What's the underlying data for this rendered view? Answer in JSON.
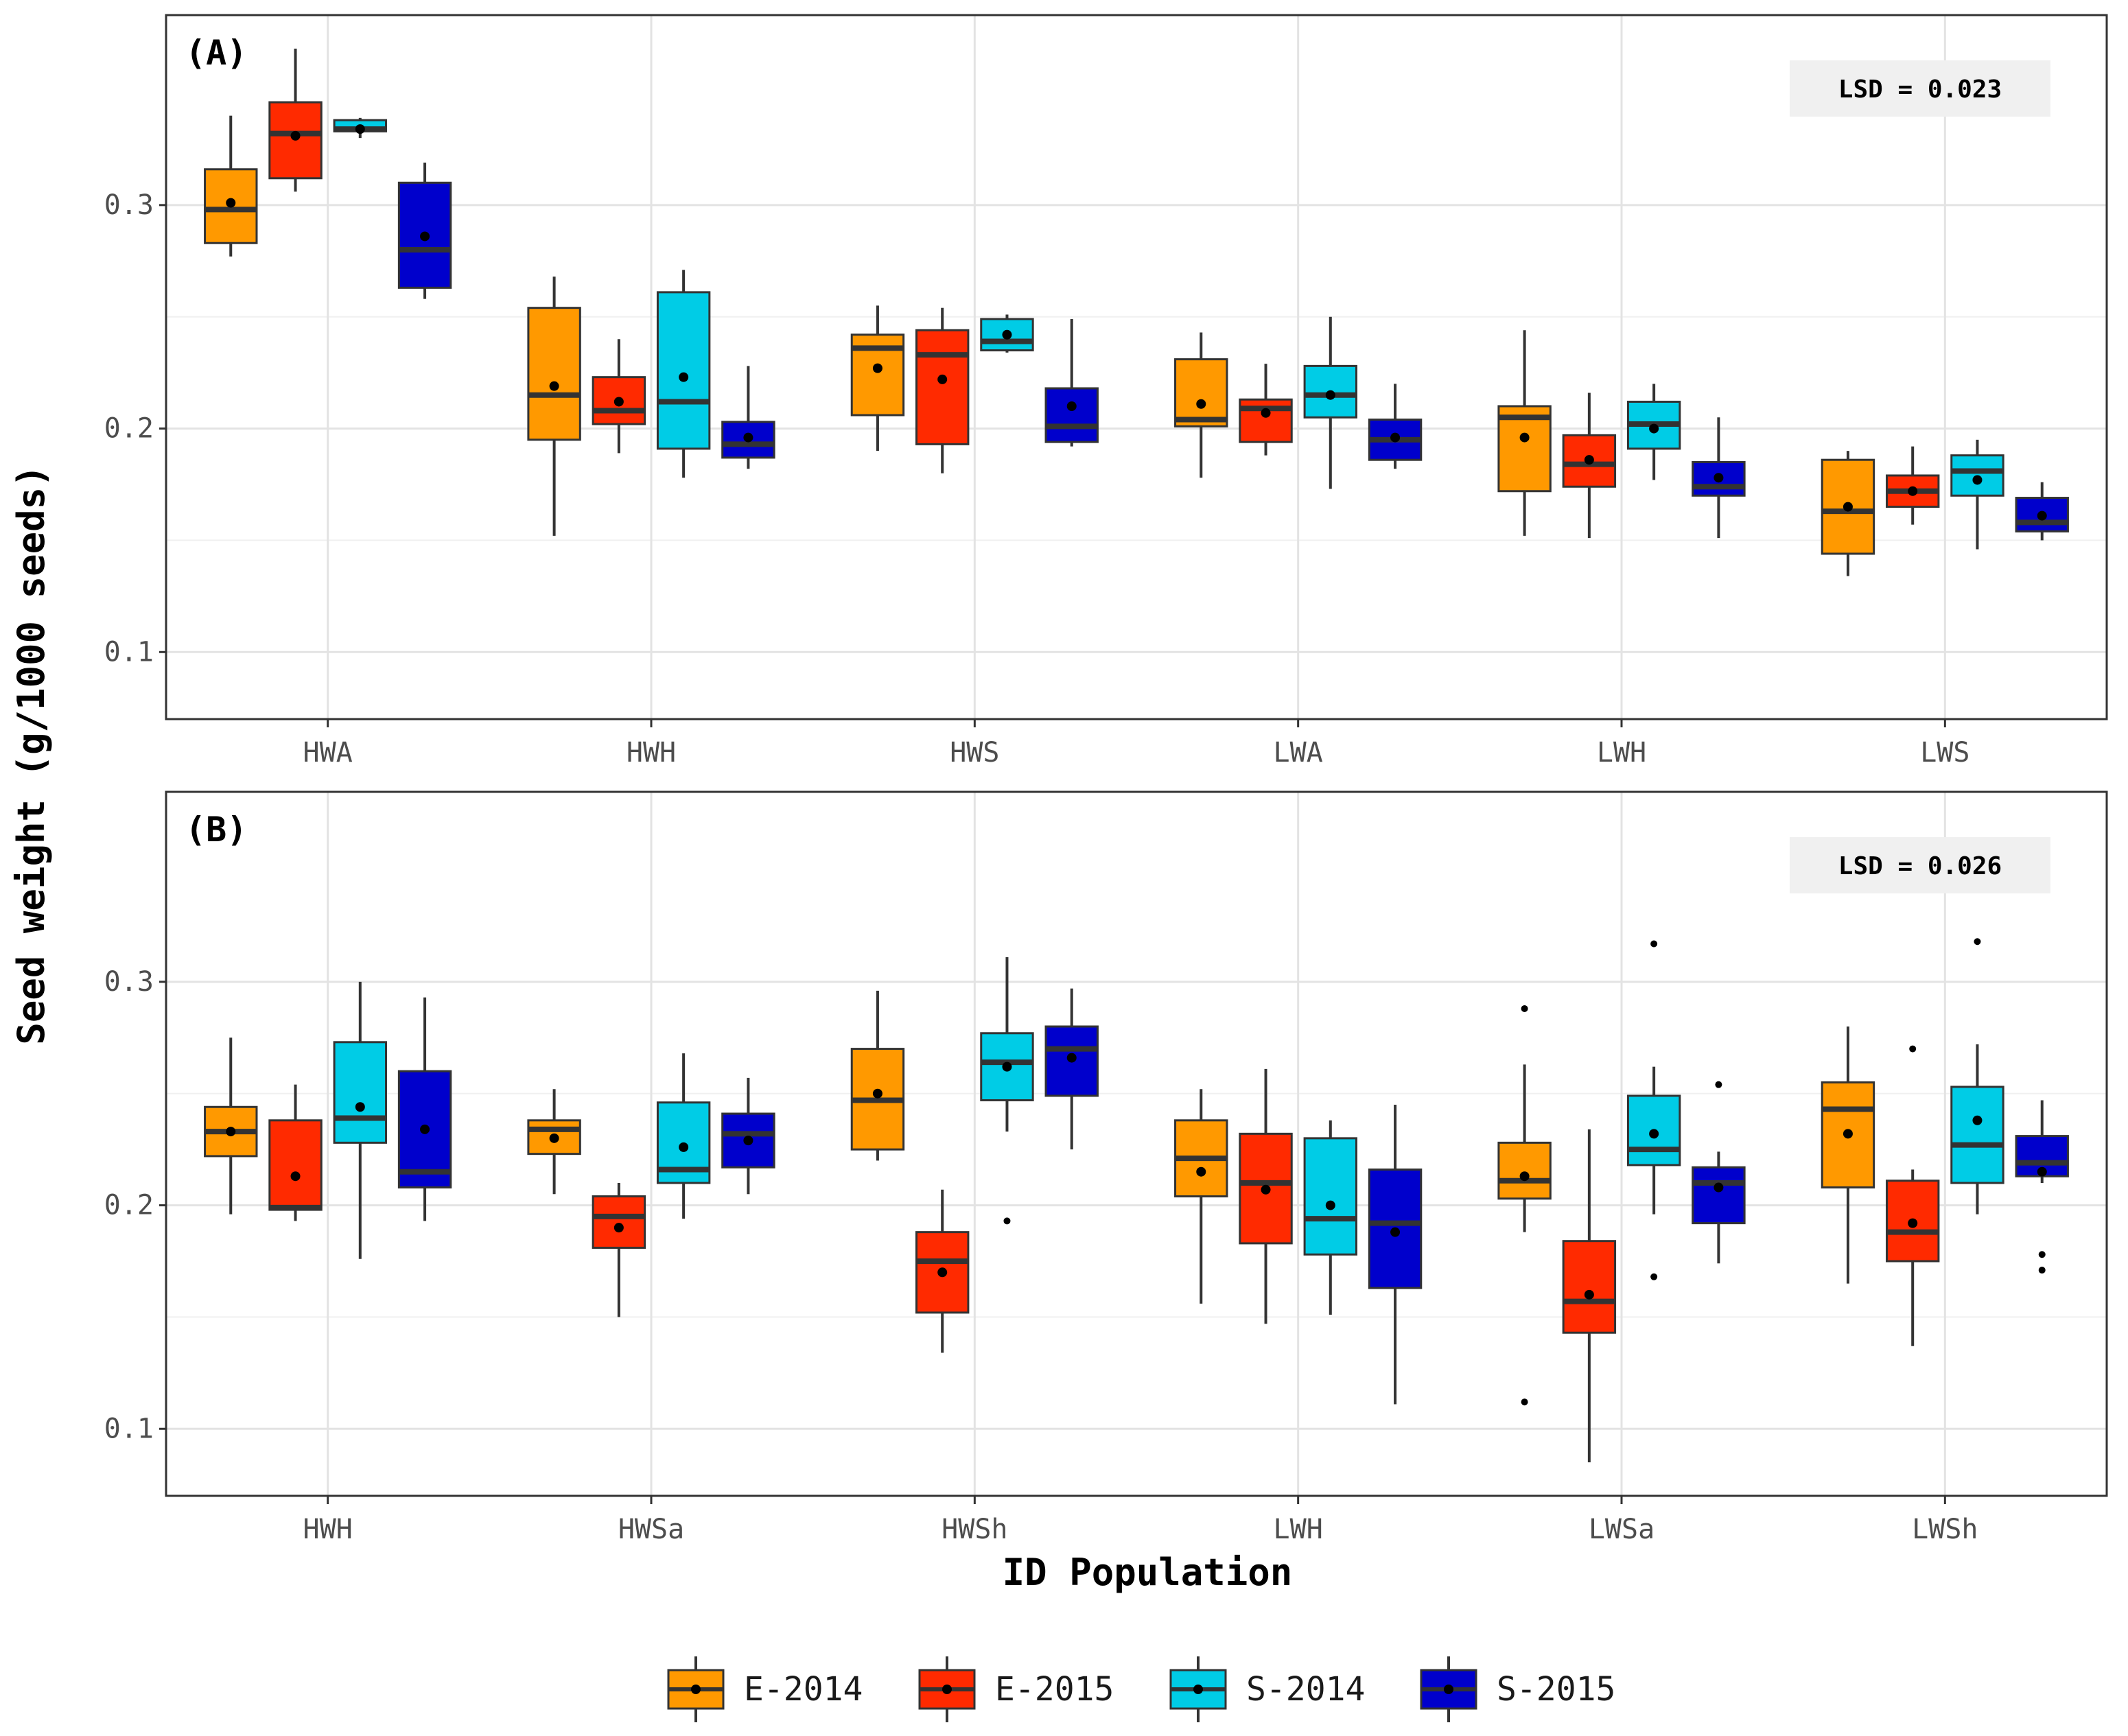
{
  "figure": {
    "ylabel": "Seed weight (g/1000 seeds)",
    "xlabel": "ID Population",
    "legend_position": "bottom"
  },
  "series": [
    {
      "name": "E-2014",
      "color": "#FF9900"
    },
    {
      "name": "E-2015",
      "color": "#FF2A00"
    },
    {
      "name": "S-2014",
      "color": "#00CCE6"
    },
    {
      "name": "S-2015",
      "color": "#0000CC"
    }
  ],
  "chart_data": [
    {
      "type": "boxplot",
      "panel": "(A)",
      "lsd_label": "LSD = 0.023",
      "ylim": [
        0.07,
        0.385
      ],
      "yticks": [
        0.1,
        0.2,
        0.3
      ],
      "ytick_labels": [
        "0.1",
        "0.2",
        "0.3"
      ],
      "grid": true,
      "categories": [
        "HWA",
        "HWH",
        "HWS",
        "LWA",
        "LWH",
        "LWS"
      ],
      "series": [
        {
          "name": "E-2014",
          "boxes": [
            {
              "min": 0.277,
              "q1": 0.283,
              "median": 0.298,
              "q3": 0.316,
              "max": 0.34,
              "mean": 0.301,
              "outliers": []
            },
            {
              "min": 0.152,
              "q1": 0.195,
              "median": 0.215,
              "q3": 0.254,
              "max": 0.268,
              "mean": 0.219,
              "outliers": []
            },
            {
              "min": 0.19,
              "q1": 0.206,
              "median": 0.236,
              "q3": 0.242,
              "max": 0.255,
              "mean": 0.227,
              "outliers": []
            },
            {
              "min": 0.178,
              "q1": 0.201,
              "median": 0.204,
              "q3": 0.231,
              "max": 0.243,
              "mean": 0.211,
              "outliers": []
            },
            {
              "min": 0.152,
              "q1": 0.172,
              "median": 0.205,
              "q3": 0.21,
              "max": 0.244,
              "mean": 0.196,
              "outliers": []
            },
            {
              "min": 0.134,
              "q1": 0.144,
              "median": 0.163,
              "q3": 0.186,
              "max": 0.19,
              "mean": 0.165,
              "outliers": []
            }
          ]
        },
        {
          "name": "E-2015",
          "boxes": [
            {
              "min": 0.306,
              "q1": 0.312,
              "median": 0.332,
              "q3": 0.346,
              "max": 0.37,
              "mean": 0.331,
              "outliers": []
            },
            {
              "min": 0.189,
              "q1": 0.202,
              "median": 0.208,
              "q3": 0.223,
              "max": 0.24,
              "mean": 0.212,
              "outliers": []
            },
            {
              "min": 0.18,
              "q1": 0.193,
              "median": 0.233,
              "q3": 0.244,
              "max": 0.254,
              "mean": 0.222,
              "outliers": []
            },
            {
              "min": 0.188,
              "q1": 0.194,
              "median": 0.209,
              "q3": 0.213,
              "max": 0.229,
              "mean": 0.207,
              "outliers": []
            },
            {
              "min": 0.151,
              "q1": 0.174,
              "median": 0.184,
              "q3": 0.197,
              "max": 0.216,
              "mean": 0.186,
              "outliers": []
            },
            {
              "min": 0.157,
              "q1": 0.165,
              "median": 0.172,
              "q3": 0.179,
              "max": 0.192,
              "mean": 0.172,
              "outliers": []
            }
          ]
        },
        {
          "name": "S-2014",
          "boxes": [
            {
              "min": 0.33,
              "q1": 0.333,
              "median": 0.334,
              "q3": 0.338,
              "max": 0.339,
              "mean": 0.334,
              "outliers": []
            },
            {
              "min": 0.178,
              "q1": 0.191,
              "median": 0.212,
              "q3": 0.261,
              "max": 0.271,
              "mean": 0.223,
              "outliers": []
            },
            {
              "min": 0.234,
              "q1": 0.235,
              "median": 0.239,
              "q3": 0.249,
              "max": 0.251,
              "mean": 0.242,
              "outliers": []
            },
            {
              "min": 0.173,
              "q1": 0.205,
              "median": 0.215,
              "q3": 0.228,
              "max": 0.25,
              "mean": 0.215,
              "outliers": []
            },
            {
              "min": 0.177,
              "q1": 0.191,
              "median": 0.202,
              "q3": 0.212,
              "max": 0.22,
              "mean": 0.2,
              "outliers": []
            },
            {
              "min": 0.146,
              "q1": 0.17,
              "median": 0.181,
              "q3": 0.188,
              "max": 0.195,
              "mean": 0.177,
              "outliers": []
            }
          ]
        },
        {
          "name": "S-2015",
          "boxes": [
            {
              "min": 0.258,
              "q1": 0.263,
              "median": 0.28,
              "q3": 0.31,
              "max": 0.319,
              "mean": 0.286,
              "outliers": []
            },
            {
              "min": 0.182,
              "q1": 0.187,
              "median": 0.193,
              "q3": 0.203,
              "max": 0.228,
              "mean": 0.196,
              "outliers": []
            },
            {
              "min": 0.192,
              "q1": 0.194,
              "median": 0.201,
              "q3": 0.218,
              "max": 0.249,
              "mean": 0.21,
              "outliers": []
            },
            {
              "min": 0.182,
              "q1": 0.186,
              "median": 0.195,
              "q3": 0.204,
              "max": 0.22,
              "mean": 0.196,
              "outliers": []
            },
            {
              "min": 0.151,
              "q1": 0.17,
              "median": 0.174,
              "q3": 0.185,
              "max": 0.205,
              "mean": 0.178,
              "outliers": []
            },
            {
              "min": 0.15,
              "q1": 0.154,
              "median": 0.158,
              "q3": 0.169,
              "max": 0.176,
              "mean": 0.161,
              "outliers": []
            }
          ]
        }
      ]
    },
    {
      "type": "boxplot",
      "panel": "(B)",
      "lsd_label": "LSD = 0.026",
      "ylim": [
        0.07,
        0.385
      ],
      "yticks": [
        0.1,
        0.2,
        0.3
      ],
      "ytick_labels": [
        "0.1",
        "0.2",
        "0.3"
      ],
      "grid": true,
      "categories": [
        "HWH",
        "HWSa",
        "HWSh",
        "LWH",
        "LWSa",
        "LWSh"
      ],
      "series": [
        {
          "name": "E-2014",
          "boxes": [
            {
              "min": 0.196,
              "q1": 0.222,
              "median": 0.233,
              "q3": 0.244,
              "max": 0.275,
              "mean": 0.233,
              "outliers": []
            },
            {
              "min": 0.205,
              "q1": 0.223,
              "median": 0.234,
              "q3": 0.238,
              "max": 0.252,
              "mean": 0.23,
              "outliers": []
            },
            {
              "min": 0.22,
              "q1": 0.225,
              "median": 0.247,
              "q3": 0.27,
              "max": 0.296,
              "mean": 0.25,
              "outliers": []
            },
            {
              "min": 0.156,
              "q1": 0.204,
              "median": 0.221,
              "q3": 0.238,
              "max": 0.252,
              "mean": 0.215,
              "outliers": []
            },
            {
              "min": 0.188,
              "q1": 0.203,
              "median": 0.211,
              "q3": 0.228,
              "max": 0.263,
              "mean": 0.213,
              "outliers": [
                0.112,
                0.288
              ]
            },
            {
              "min": 0.165,
              "q1": 0.208,
              "median": 0.243,
              "q3": 0.255,
              "max": 0.28,
              "mean": 0.232,
              "outliers": []
            }
          ]
        },
        {
          "name": "E-2015",
          "boxes": [
            {
              "min": 0.193,
              "q1": 0.198,
              "median": 0.199,
              "q3": 0.238,
              "max": 0.254,
              "mean": 0.213,
              "outliers": []
            },
            {
              "min": 0.15,
              "q1": 0.181,
              "median": 0.195,
              "q3": 0.204,
              "max": 0.21,
              "mean": 0.19,
              "outliers": []
            },
            {
              "min": 0.134,
              "q1": 0.152,
              "median": 0.175,
              "q3": 0.188,
              "max": 0.207,
              "mean": 0.17,
              "outliers": []
            },
            {
              "min": 0.147,
              "q1": 0.183,
              "median": 0.21,
              "q3": 0.232,
              "max": 0.261,
              "mean": 0.207,
              "outliers": []
            },
            {
              "min": 0.085,
              "q1": 0.143,
              "median": 0.157,
              "q3": 0.184,
              "max": 0.234,
              "mean": 0.16,
              "outliers": []
            },
            {
              "min": 0.137,
              "q1": 0.175,
              "median": 0.188,
              "q3": 0.211,
              "max": 0.216,
              "mean": 0.192,
              "outliers": [
                0.27
              ]
            }
          ]
        },
        {
          "name": "S-2014",
          "boxes": [
            {
              "min": 0.176,
              "q1": 0.228,
              "median": 0.239,
              "q3": 0.273,
              "max": 0.3,
              "mean": 0.244,
              "outliers": []
            },
            {
              "min": 0.194,
              "q1": 0.21,
              "median": 0.216,
              "q3": 0.246,
              "max": 0.268,
              "mean": 0.226,
              "outliers": []
            },
            {
              "min": 0.233,
              "q1": 0.247,
              "median": 0.264,
              "q3": 0.277,
              "max": 0.311,
              "mean": 0.262,
              "outliers": [
                0.193
              ]
            },
            {
              "min": 0.151,
              "q1": 0.178,
              "median": 0.194,
              "q3": 0.23,
              "max": 0.238,
              "mean": 0.2,
              "outliers": []
            },
            {
              "min": 0.196,
              "q1": 0.218,
              "median": 0.225,
              "q3": 0.249,
              "max": 0.262,
              "mean": 0.232,
              "outliers": [
                0.168,
                0.317
              ]
            },
            {
              "min": 0.196,
              "q1": 0.21,
              "median": 0.227,
              "q3": 0.253,
              "max": 0.272,
              "mean": 0.238,
              "outliers": [
                0.318
              ]
            }
          ]
        },
        {
          "name": "S-2015",
          "boxes": [
            {
              "min": 0.193,
              "q1": 0.208,
              "median": 0.215,
              "q3": 0.26,
              "max": 0.293,
              "mean": 0.234,
              "outliers": []
            },
            {
              "min": 0.205,
              "q1": 0.217,
              "median": 0.232,
              "q3": 0.241,
              "max": 0.257,
              "mean": 0.229,
              "outliers": []
            },
            {
              "min": 0.225,
              "q1": 0.249,
              "median": 0.27,
              "q3": 0.28,
              "max": 0.297,
              "mean": 0.266,
              "outliers": []
            },
            {
              "min": 0.111,
              "q1": 0.163,
              "median": 0.192,
              "q3": 0.216,
              "max": 0.245,
              "mean": 0.188,
              "outliers": []
            },
            {
              "min": 0.174,
              "q1": 0.192,
              "median": 0.21,
              "q3": 0.217,
              "max": 0.224,
              "mean": 0.208,
              "outliers": [
                0.254
              ]
            },
            {
              "min": 0.21,
              "q1": 0.213,
              "median": 0.219,
              "q3": 0.231,
              "max": 0.247,
              "mean": 0.215,
              "outliers": [
                0.171,
                0.178
              ]
            }
          ]
        }
      ]
    }
  ]
}
